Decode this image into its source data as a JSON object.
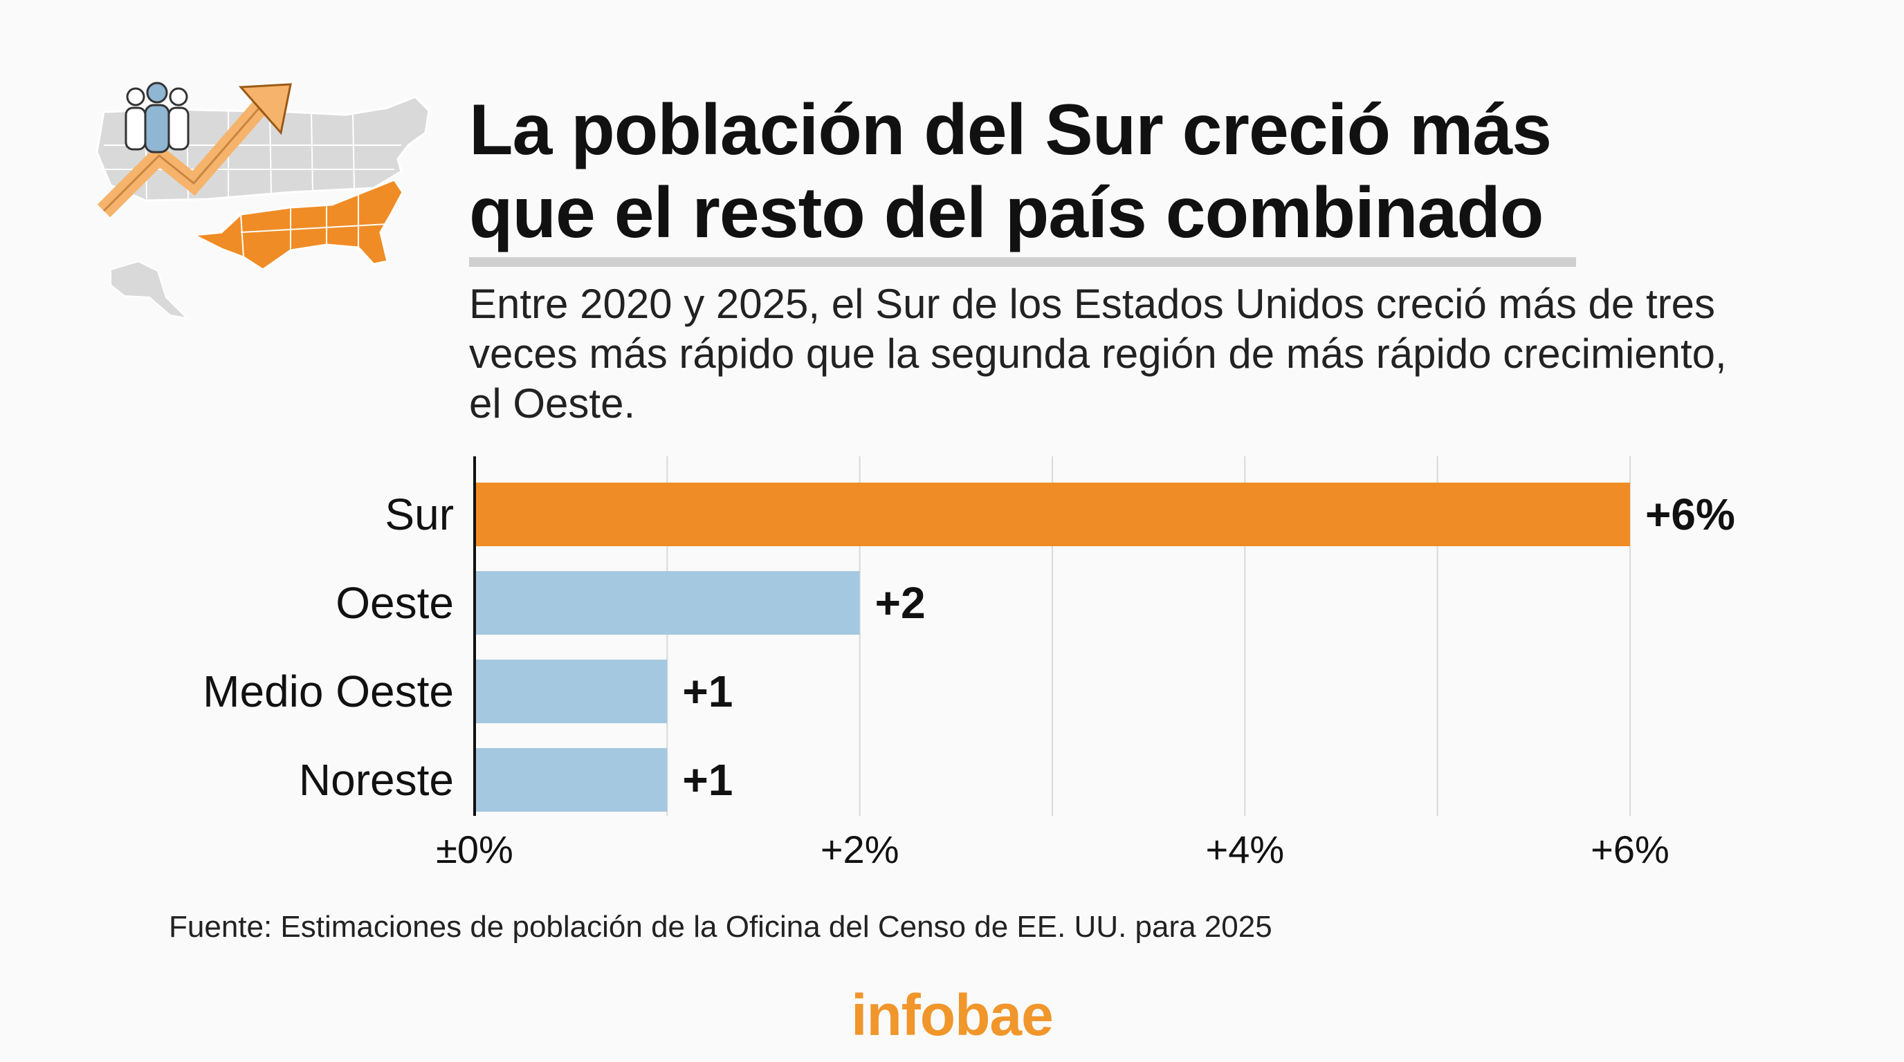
{
  "title": "La población del Sur creció más que el resto del país combinado",
  "subtitle": "Entre 2020 y 2025, el Sur de los Estados Unidos creció más de tres veces más rápido que la segunda región de más rápido crecimiento, el Oeste.",
  "source": "Fuente: Estimaciones de población de la Oficina del Censo de EE. UU. para 2025",
  "logo": "infobae",
  "colors": {
    "highlight": "#f08c25",
    "bar": "#a5c8e1",
    "grid": "#d9d9d9",
    "logo": "#f0962b"
  },
  "icons": [
    "us-map-icon",
    "people-icon",
    "growth-arrow-icon"
  ],
  "chart_data": {
    "type": "bar",
    "orientation": "horizontal",
    "categories": [
      "Sur",
      "Oeste",
      "Medio Oeste",
      "Noreste"
    ],
    "values": [
      6,
      2,
      1,
      1
    ],
    "data_labels": [
      "+6%",
      "+2",
      "+1",
      "+1"
    ],
    "highlight_index": 0,
    "xlim": [
      0,
      6
    ],
    "xticks": [
      0,
      2,
      4,
      6
    ],
    "xtick_labels": [
      "±0%",
      "+2%",
      "+4%",
      "+6%"
    ],
    "grid": true
  }
}
